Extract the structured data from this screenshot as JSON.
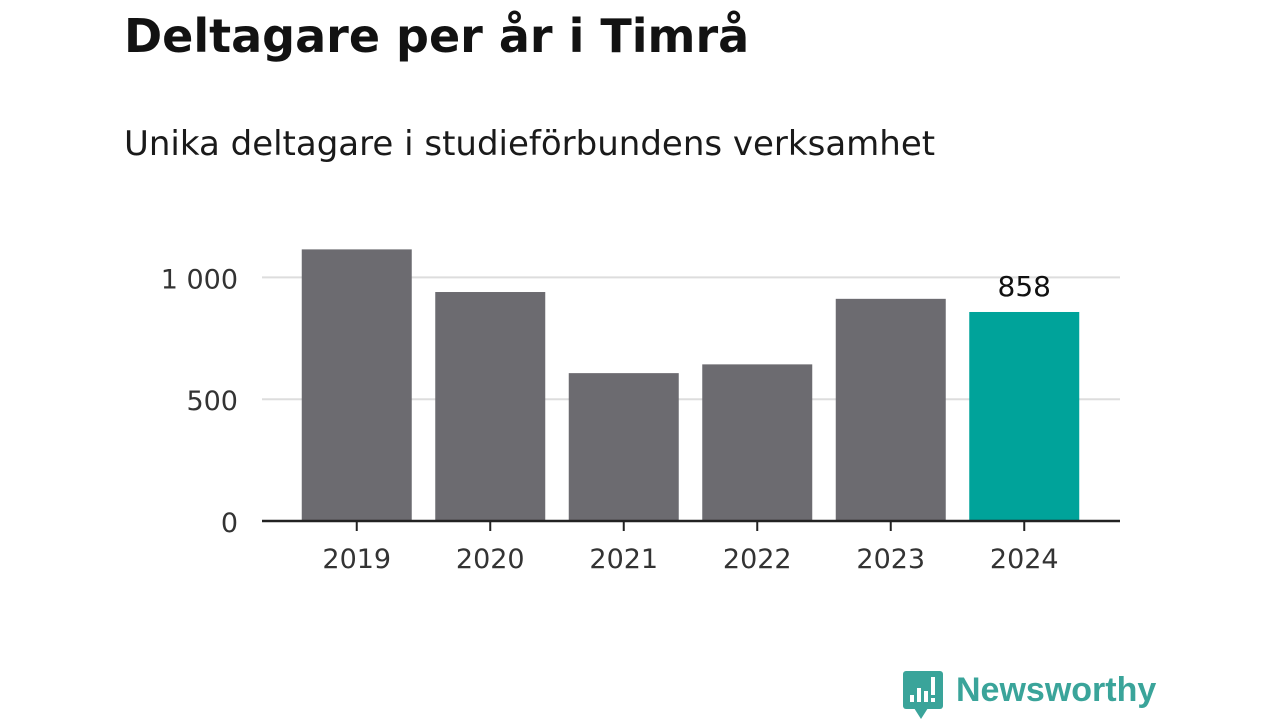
{
  "colors": {
    "bar": "#6c6b70",
    "highlight": "#00a39a",
    "grid": "#dddddd",
    "axis": "#222222",
    "text": "#333333",
    "brand": "#3aa49a"
  },
  "brand": {
    "name": "Newsworthy",
    "icon": "bar-chart-speech-bubble-icon"
  },
  "chart_data": {
    "type": "bar",
    "title": "Deltagare per år i Timrå",
    "subtitle": "Unika deltagare i studieförbundens verksamhet",
    "categories": [
      "2019",
      "2020",
      "2021",
      "2022",
      "2023",
      "2024"
    ],
    "values": [
      1115,
      940,
      607,
      643,
      912,
      858
    ],
    "highlight_index": 5,
    "data_labels": [
      {
        "index": 5,
        "text": "858"
      }
    ],
    "y_ticks": [
      {
        "value": 0,
        "label": "0"
      },
      {
        "value": 500,
        "label": "500"
      },
      {
        "value": 1000,
        "label": "1 000"
      }
    ],
    "ylim": [
      0,
      1160
    ],
    "grid": true,
    "legend": "none",
    "xlabel": "",
    "ylabel": ""
  }
}
